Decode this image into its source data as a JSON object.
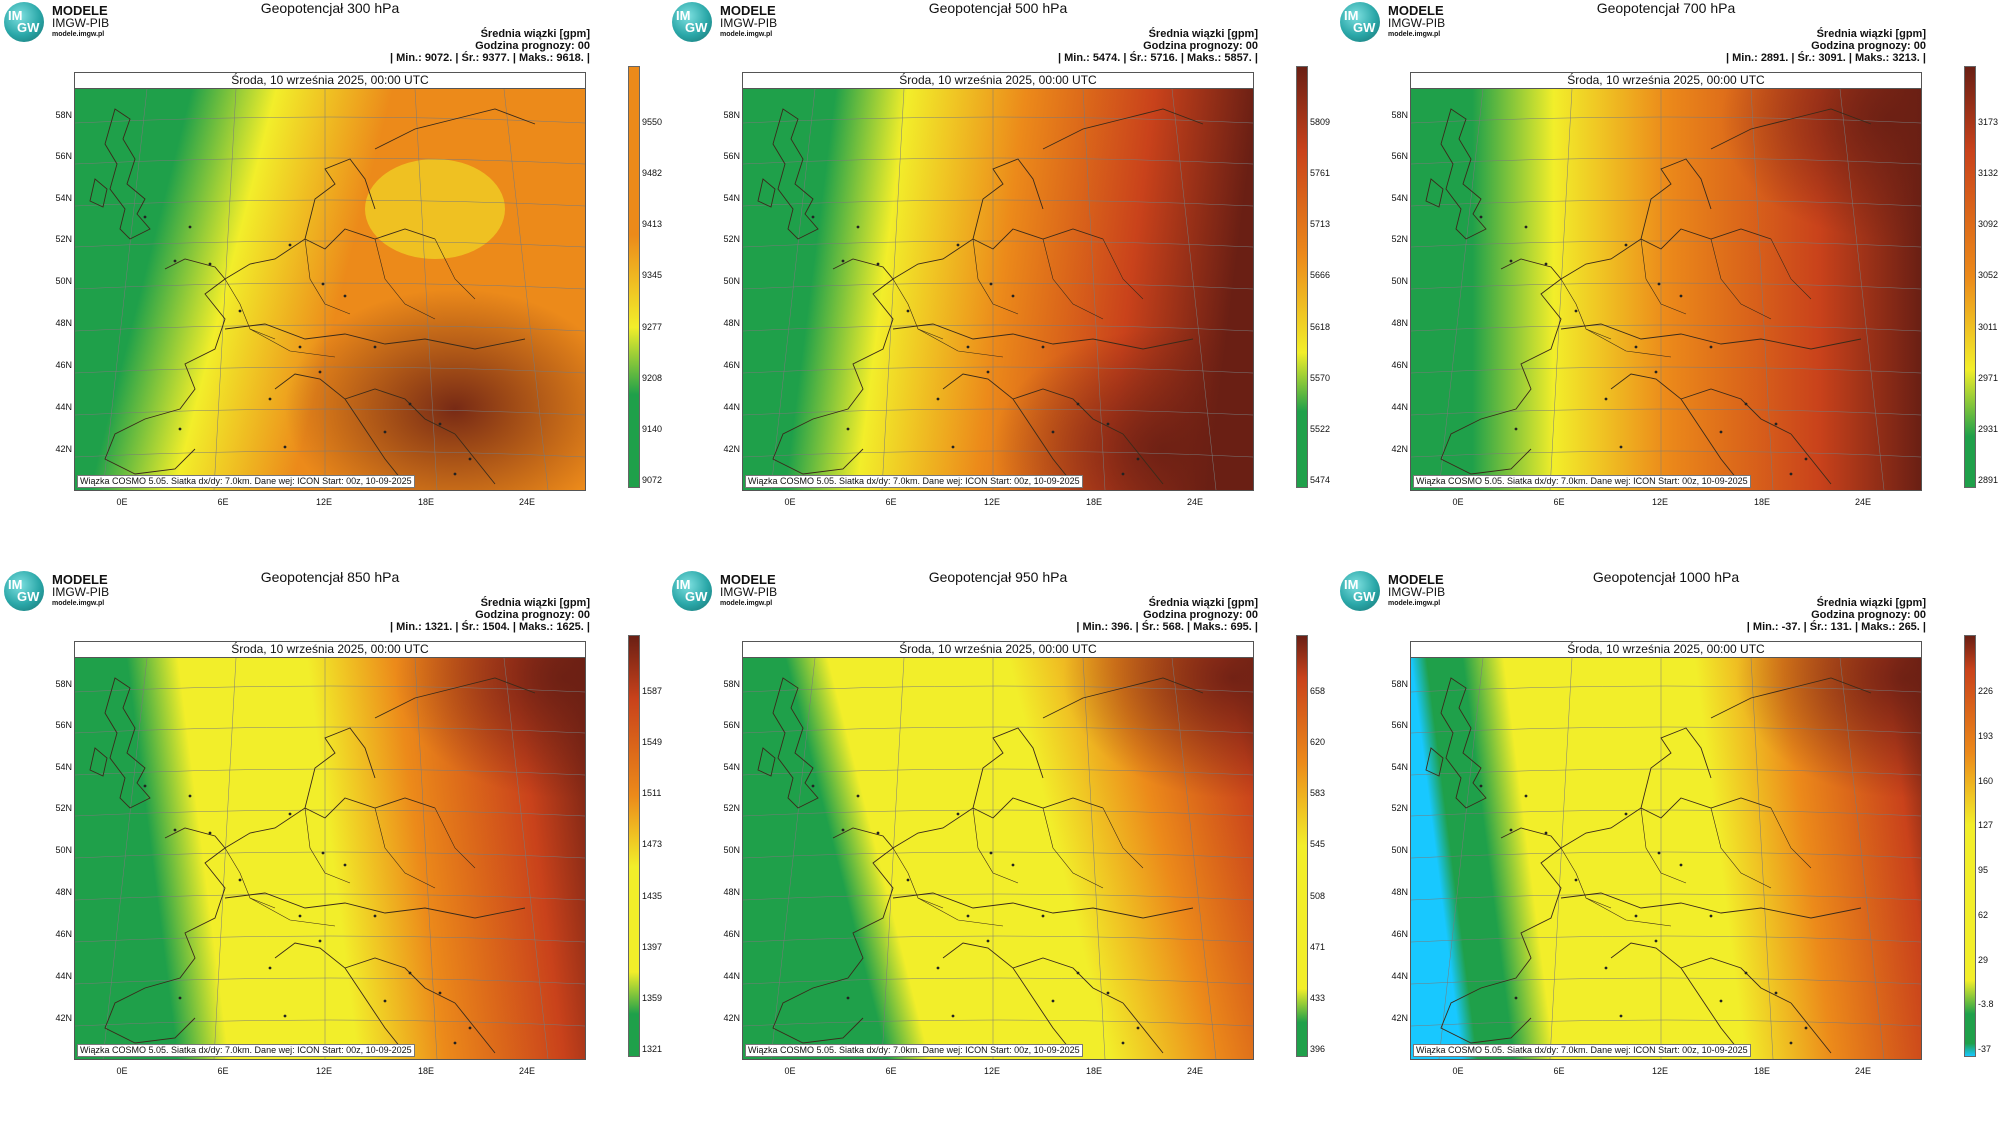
{
  "branding": {
    "logo_top": "IM",
    "logo_bottom": "GW",
    "name": "MODELE",
    "org": "IMGW-PIB",
    "url": "modele.imgw.pl"
  },
  "common": {
    "legend_title": "Średnia wiązki [gpm]",
    "forecast_hour": "Godzina prognozy: 00",
    "date": "Środa, 10 września 2025, 00:00 UTC",
    "footer": "Wiązka COSMO 5.05. Siatka dx/dy: 7.0km. Dane wej: ICON Start: 00z, 10-09-2025",
    "lat_labels": [
      "58N",
      "56N",
      "54N",
      "52N",
      "50N",
      "48N",
      "46N",
      "44N",
      "42N"
    ],
    "lon_labels": [
      "0E",
      "6E",
      "12E",
      "18E",
      "24E"
    ]
  },
  "colors": {
    "low": "#4fe3d0",
    "green": "#1fa04a",
    "yellow": "#f2ee2a",
    "orange": "#ec8a1a",
    "red": "#c9421b",
    "dark": "#6a1f14",
    "cyan": "#18c8ff"
  },
  "panels": [
    {
      "title": "Geopotencjał 300 hPa",
      "stats": "| Min.:   9072. | Śr.:   9377. | Maks.:   9618. |",
      "colorbar": [
        "9550",
        "9482",
        "9413",
        "9345",
        "9277",
        "9208",
        "9140",
        "9072"
      ],
      "scheme": "p300"
    },
    {
      "title": "Geopotencjał 500 hPa",
      "stats": "| Min.:   5474. | Śr.:   5716. | Maks.:   5857. |",
      "colorbar": [
        "5809",
        "5761",
        "5713",
        "5666",
        "5618",
        "5570",
        "5522",
        "5474"
      ],
      "scheme": "p500"
    },
    {
      "title": "Geopotencjał 700 hPa",
      "stats": "| Min.:   2891. | Śr.:   3091. | Maks.:   3213. |",
      "colorbar": [
        "3173",
        "3132",
        "3092",
        "3052",
        "3011",
        "2971",
        "2931",
        "2891"
      ],
      "scheme": "p700"
    },
    {
      "title": "Geopotencjał 850 hPa",
      "stats": "| Min.:   1321. | Śr.:   1504. | Maks.:   1625. |",
      "colorbar": [
        "1587",
        "1549",
        "1511",
        "1473",
        "1435",
        "1397",
        "1359",
        "1321"
      ],
      "scheme": "p850"
    },
    {
      "title": "Geopotencjał 950 hPa",
      "stats": "| Min.:   396. | Śr.:   568. | Maks.:   695. |",
      "colorbar": [
        "658",
        "620",
        "583",
        "545",
        "508",
        "471",
        "433",
        "396"
      ],
      "scheme": "p950"
    },
    {
      "title": "Geopotencjał 1000 hPa",
      "stats": "| Min.:   -37. | Śr.:   131. | Maks.:   265. |",
      "colorbar": [
        "226",
        "193",
        "160",
        "127",
        "95",
        "62",
        "29",
        "-3.8",
        "-37"
      ],
      "scheme": "p1000"
    }
  ]
}
